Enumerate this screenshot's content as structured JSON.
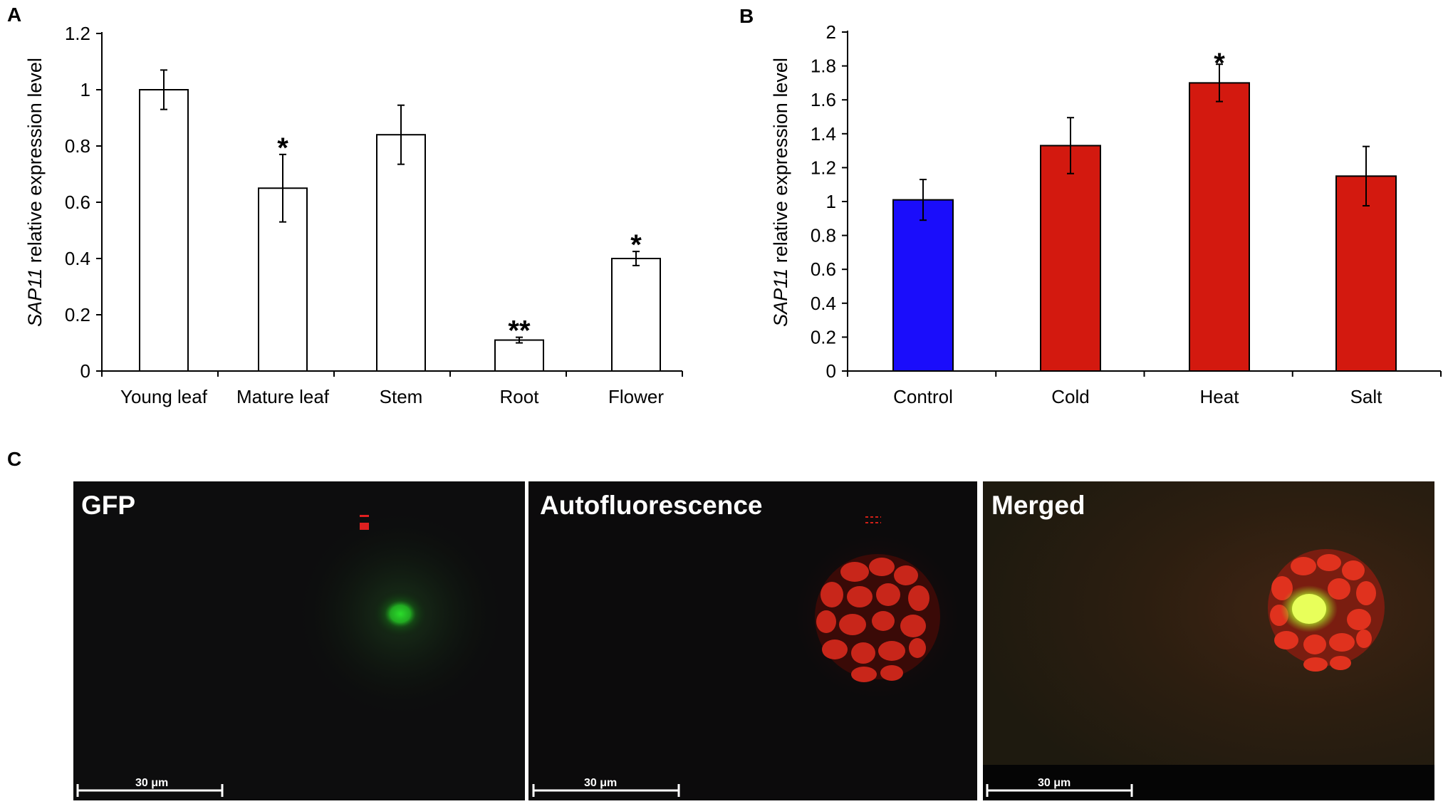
{
  "panels": {
    "a": "A",
    "b": "B",
    "c": "C"
  },
  "chart_data": [
    {
      "type": "bar",
      "panel": "A",
      "categories": [
        "Young leaf",
        "Mature leaf",
        "Stem",
        "Root",
        "Flower"
      ],
      "values": [
        1.0,
        0.65,
        0.84,
        0.11,
        0.4
      ],
      "errors": [
        0.07,
        0.12,
        0.105,
        0.01,
        0.025
      ],
      "significance": [
        "",
        "*",
        "",
        "**",
        "*"
      ],
      "ylabel_italic": "SAP11",
      "ylabel_rest": "relative expression level",
      "ylim": [
        0,
        1.2
      ],
      "yticks": [
        "0",
        "0.2",
        "0.4",
        "0.6",
        "0.8",
        "1",
        "1.2"
      ],
      "bar_colors": [
        "#ffffff",
        "#ffffff",
        "#ffffff",
        "#ffffff",
        "#ffffff"
      ],
      "grid": false
    },
    {
      "type": "bar",
      "panel": "B",
      "categories": [
        "Control",
        "Cold",
        "Heat",
        "Salt"
      ],
      "values": [
        1.01,
        1.33,
        1.7,
        1.15
      ],
      "errors": [
        0.12,
        0.165,
        0.11,
        0.175
      ],
      "significance": [
        "",
        "",
        "*",
        ""
      ],
      "ylabel_italic": "SAP11",
      "ylabel_rest": "relative expression level",
      "ylim": [
        0,
        2
      ],
      "yticks": [
        "0",
        "0.2",
        "0.4",
        "0.6",
        "0.8",
        "1",
        "1.2",
        "1.4",
        "1.6",
        "1.8",
        "2"
      ],
      "bar_colors": [
        "#1a0dfb",
        "#d3190f",
        "#d3190f",
        "#d3190f"
      ],
      "grid": false
    }
  ],
  "micrographs": [
    {
      "label": "GFP",
      "scale_bar": "30 μm"
    },
    {
      "label": "Autofluorescence",
      "scale_bar": "30 μm"
    },
    {
      "label": "Merged",
      "scale_bar": "30 μm"
    }
  ]
}
